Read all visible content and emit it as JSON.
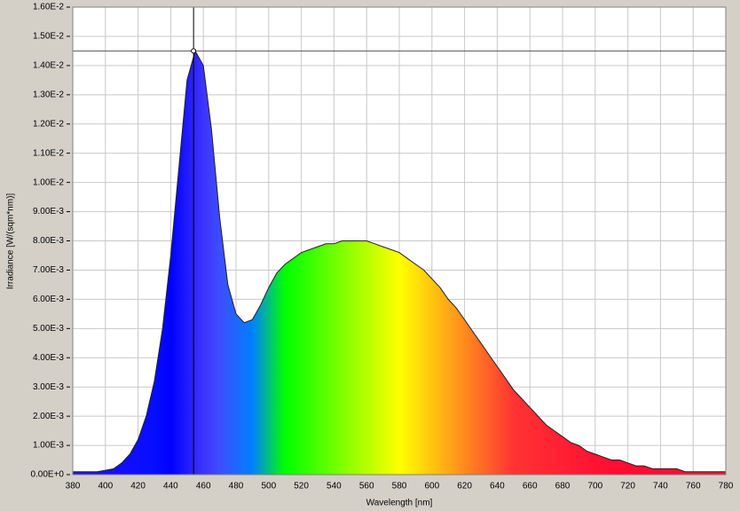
{
  "chart_data": {
    "type": "area",
    "xlabel": "Wavelength [nm]",
    "ylabel": "Irradiance [W/(sqm*nm)]",
    "x": [
      380,
      385,
      390,
      395,
      400,
      405,
      410,
      415,
      420,
      425,
      430,
      435,
      440,
      445,
      450,
      455,
      460,
      465,
      470,
      475,
      480,
      485,
      490,
      495,
      500,
      505,
      510,
      515,
      520,
      525,
      530,
      535,
      540,
      545,
      550,
      555,
      560,
      565,
      570,
      575,
      580,
      585,
      590,
      595,
      600,
      605,
      610,
      615,
      620,
      625,
      630,
      635,
      640,
      645,
      650,
      655,
      660,
      665,
      670,
      675,
      680,
      685,
      690,
      695,
      700,
      705,
      710,
      715,
      720,
      725,
      730,
      735,
      740,
      745,
      750,
      755,
      760,
      765,
      770,
      775,
      780
    ],
    "values": [
      0.0001,
      0.0001,
      0.0001,
      0.0001,
      0.00015,
      0.0002,
      0.0004,
      0.0007,
      0.0012,
      0.002,
      0.0032,
      0.005,
      0.0075,
      0.0105,
      0.0135,
      0.0145,
      0.014,
      0.0118,
      0.0088,
      0.0065,
      0.0055,
      0.0052,
      0.0053,
      0.0058,
      0.0064,
      0.0069,
      0.0072,
      0.0074,
      0.0076,
      0.0077,
      0.0078,
      0.0079,
      0.0079,
      0.008,
      0.008,
      0.008,
      0.008,
      0.0079,
      0.0078,
      0.0077,
      0.0076,
      0.0074,
      0.0072,
      0.007,
      0.0067,
      0.0064,
      0.006,
      0.0057,
      0.0053,
      0.0049,
      0.0045,
      0.0041,
      0.0037,
      0.0033,
      0.0029,
      0.0026,
      0.0023,
      0.002,
      0.0017,
      0.0015,
      0.0013,
      0.0011,
      0.001,
      0.0008,
      0.0007,
      0.0006,
      0.0005,
      0.0005,
      0.0004,
      0.0003,
      0.0003,
      0.0002,
      0.0002,
      0.0002,
      0.0002,
      0.0001,
      0.0001,
      0.0001,
      0.0001,
      0.0001,
      0.0001
    ],
    "cursor": {
      "x": 454,
      "y": 0.0145
    },
    "xlim": [
      380,
      780
    ],
    "xticks": [
      380,
      400,
      420,
      440,
      460,
      480,
      500,
      520,
      540,
      560,
      580,
      600,
      620,
      640,
      660,
      680,
      700,
      720,
      740,
      760,
      780
    ],
    "ylim": [
      0,
      0.016
    ],
    "yticks": [
      {
        "value": 0,
        "label": "0.00E+0"
      },
      {
        "value": 0.001,
        "label": "1.00E-3"
      },
      {
        "value": 0.002,
        "label": "2.00E-3"
      },
      {
        "value": 0.003,
        "label": "3.00E-3"
      },
      {
        "value": 0.004,
        "label": "4.00E-3"
      },
      {
        "value": 0.005,
        "label": "5.00E-3"
      },
      {
        "value": 0.006,
        "label": "6.00E-3"
      },
      {
        "value": 0.007,
        "label": "7.00E-3"
      },
      {
        "value": 0.008,
        "label": "8.00E-3"
      },
      {
        "value": 0.009,
        "label": "9.00E-3"
      },
      {
        "value": 0.01,
        "label": "1.00E-2"
      },
      {
        "value": 0.011,
        "label": "1.10E-2"
      },
      {
        "value": 0.012,
        "label": "1.20E-2"
      },
      {
        "value": 0.013,
        "label": "1.30E-2"
      },
      {
        "value": 0.014,
        "label": "1.40E-2"
      },
      {
        "value": 0.015,
        "label": "1.50E-2"
      },
      {
        "value": 0.016,
        "label": "1.60E-2"
      }
    ],
    "grid": true
  }
}
